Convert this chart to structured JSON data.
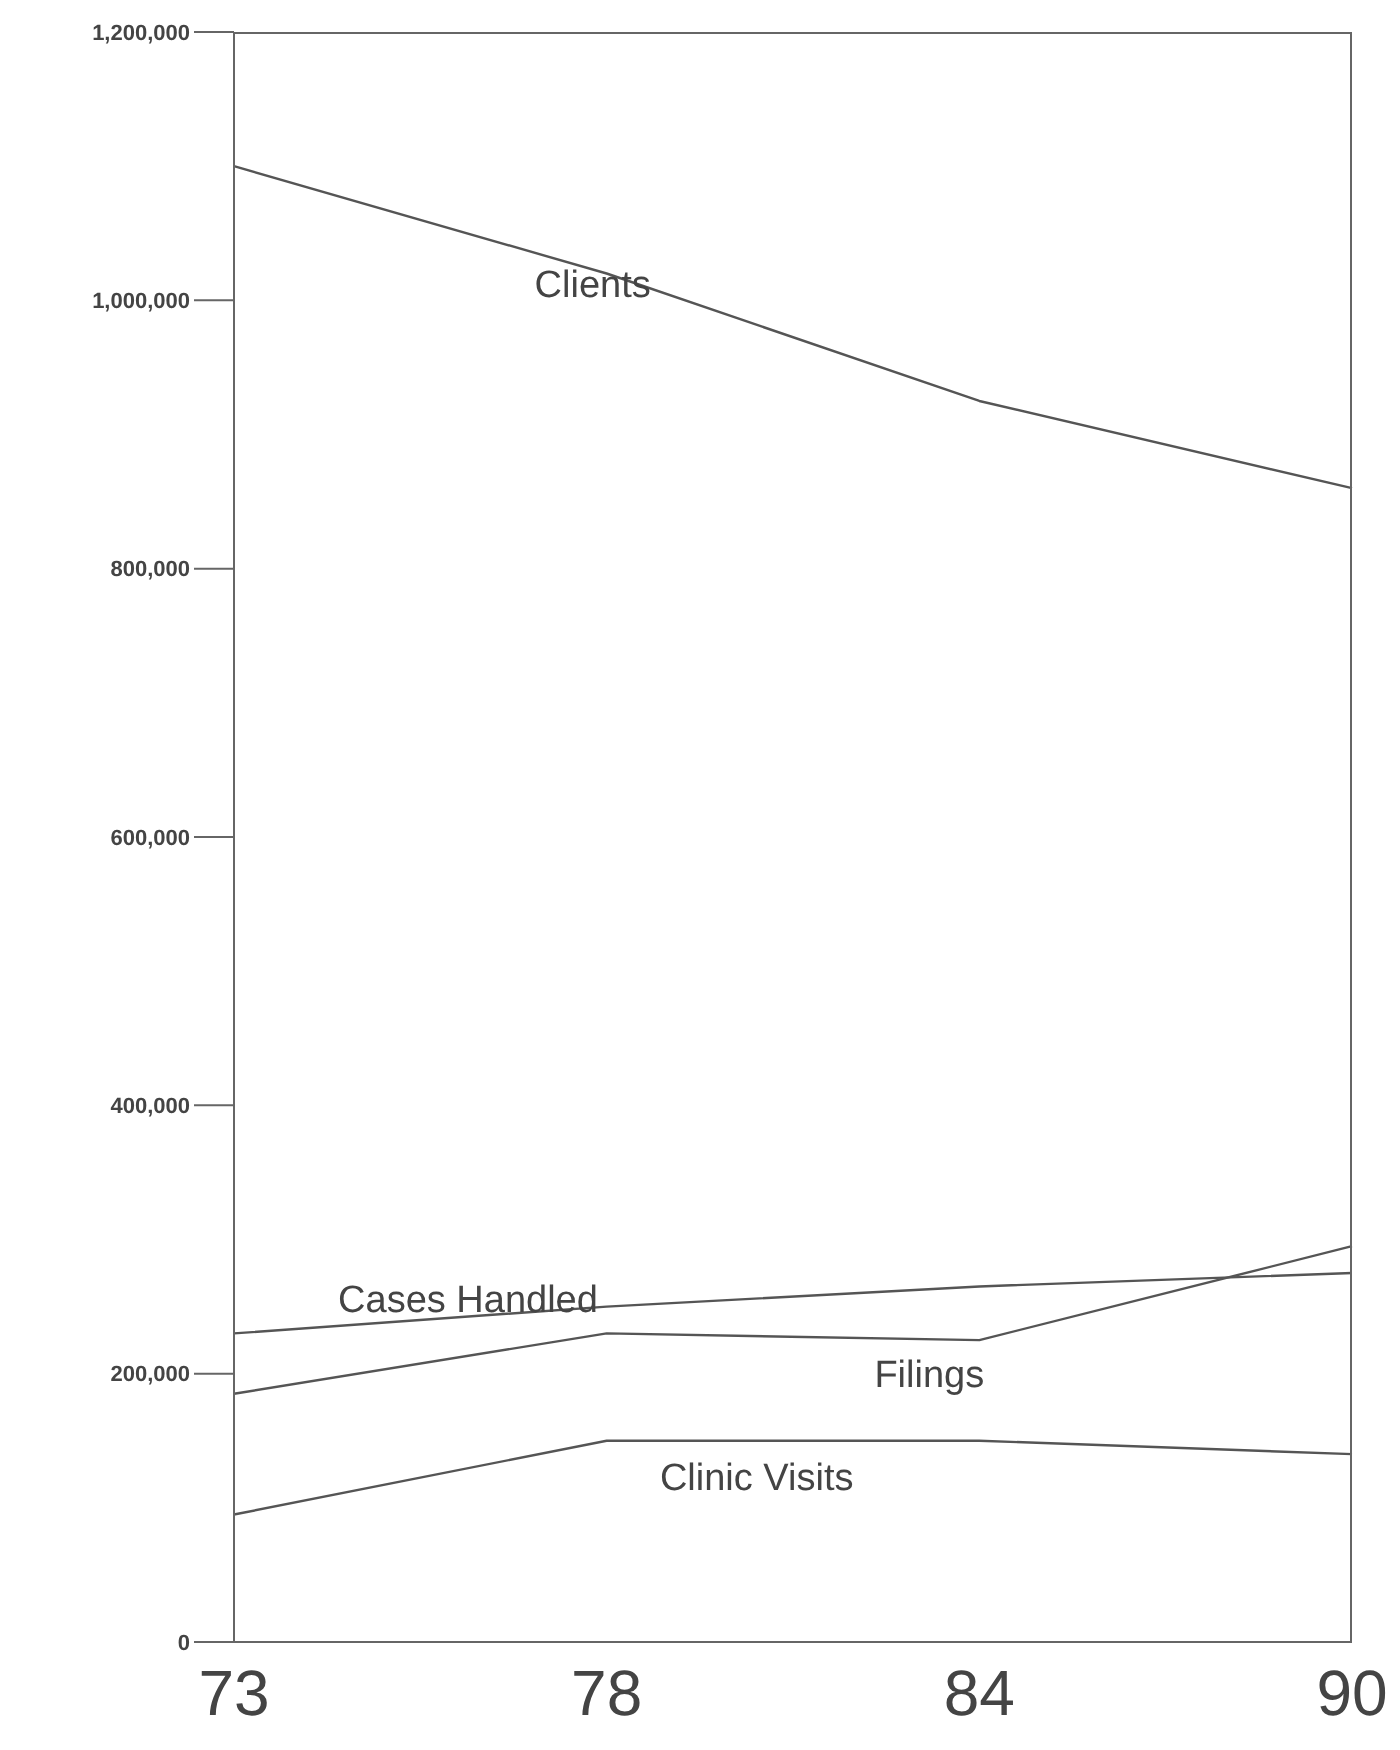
{
  "chart_data": {
    "type": "line",
    "categories": [
      "73",
      "78",
      "84",
      "90"
    ],
    "series": [
      {
        "name": "Clients",
        "color": "#555555",
        "values": [
          1100000,
          1020000,
          925000,
          860000
        ]
      },
      {
        "name": "Cases Handled",
        "color": "#555555",
        "values": [
          230000,
          250000,
          265000,
          275000
        ]
      },
      {
        "name": "Filings",
        "color": "#555555",
        "values": [
          185000,
          230000,
          225000,
          295000
        ]
      },
      {
        "name": "Clinic Visits",
        "color": "#555555",
        "values": [
          95000,
          150000,
          150000,
          140000
        ]
      }
    ],
    "ylim": [
      0,
      1200000
    ],
    "yticks": [
      0,
      {
        "value": 200000,
        "label": "200,000"
      },
      {
        "value": 400000,
        "label": "400,000"
      },
      {
        "value": 600000,
        "label": "600,000"
      },
      {
        "value": 800000,
        "label": "800,000"
      },
      {
        "value": 1000000,
        "label": "1,000,000"
      },
      {
        "value": 1200000,
        "label": "1,200,000"
      }
    ],
    "grid": false,
    "legend": false,
    "marker": "none",
    "line_style": "solid"
  }
}
